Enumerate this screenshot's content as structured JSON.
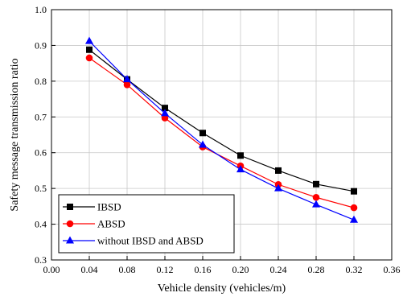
{
  "chart_data": {
    "type": "line",
    "xlabel": "Vehicle density (vehicles/m)",
    "ylabel": "Safety message transmission ratio",
    "xlim": [
      0.0,
      0.36
    ],
    "ylim": [
      0.3,
      1.0
    ],
    "xticks": [
      "0.00",
      "0.04",
      "0.08",
      "0.12",
      "0.16",
      "0.20",
      "0.24",
      "0.28",
      "0.32",
      "0.36"
    ],
    "yticks": [
      "0.3",
      "0.4",
      "0.5",
      "0.6",
      "0.7",
      "0.8",
      "0.9",
      "1.0"
    ],
    "grid": true,
    "legend_position": "bottom-left",
    "x": [
      0.04,
      0.08,
      0.12,
      0.16,
      0.2,
      0.24,
      0.28,
      0.32
    ],
    "series": [
      {
        "name": "IBSD",
        "color": "#000000",
        "marker": "square",
        "values": [
          0.888,
          0.805,
          0.725,
          0.655,
          0.592,
          0.55,
          0.512,
          0.492
        ]
      },
      {
        "name": "ABSD",
        "color": "#ff0000",
        "marker": "circle",
        "values": [
          0.865,
          0.79,
          0.697,
          0.616,
          0.563,
          0.511,
          0.475,
          0.446
        ]
      },
      {
        "name": "without IBSD and ABSD",
        "color": "#0000ff",
        "marker": "triangle",
        "values": [
          0.912,
          0.805,
          0.71,
          0.622,
          0.553,
          0.5,
          0.455,
          0.412
        ]
      }
    ]
  }
}
